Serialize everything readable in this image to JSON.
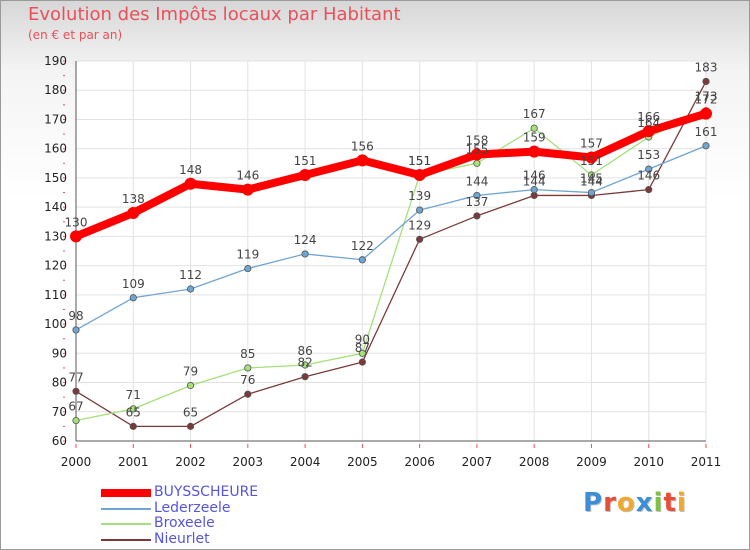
{
  "title": "Evolution des Impôts locaux par Habitant",
  "subtitle": "(en € et par an)",
  "logo_text": "Proxiti",
  "logo_colors": [
    "#3b8ed8",
    "#e84d3a",
    "#f0a830",
    "#3b8ed8",
    "#7cc242",
    "#e84d3a",
    "#f0a830"
  ],
  "chart_data": {
    "type": "line",
    "title": "Evolution des Impôts locaux par Habitant",
    "ylabel": "(en € et par an)",
    "xlabel": "",
    "categories": [
      "2000",
      "2001",
      "2002",
      "2003",
      "2004",
      "2005",
      "2006",
      "2007",
      "2008",
      "2009",
      "2010",
      "2011"
    ],
    "ylim": [
      60,
      190
    ],
    "yticks": [
      60,
      70,
      80,
      90,
      100,
      110,
      120,
      130,
      140,
      150,
      160,
      170,
      180,
      190
    ],
    "grid": true,
    "legend_position": "bottom-left",
    "series": [
      {
        "name": "BUYSSCHEURE",
        "color": "#ff0000",
        "values": [
          130,
          138,
          148,
          146,
          151,
          156,
          151,
          158,
          159,
          157,
          166,
          172
        ]
      },
      {
        "name": "Lederzeele",
        "color": "#6fa5d2",
        "values": [
          98,
          109,
          112,
          119,
          124,
          122,
          139,
          144,
          146,
          145,
          153,
          161
        ]
      },
      {
        "name": "Broxeele",
        "color": "#a6e07a",
        "values": [
          67,
          71,
          79,
          85,
          86,
          90,
          151,
          155,
          167,
          151,
          164,
          173
        ]
      },
      {
        "name": "Nieurlet",
        "color": "#7b3a3a",
        "values": [
          77,
          65,
          65,
          76,
          82,
          87,
          129,
          137,
          144,
          144,
          146,
          183
        ]
      }
    ]
  }
}
